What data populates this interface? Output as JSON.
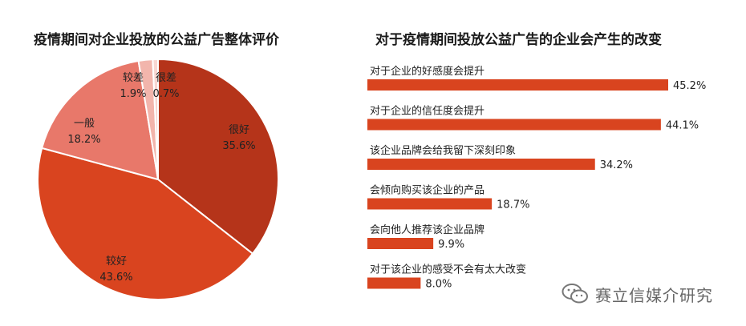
{
  "chart_data": [
    {
      "type": "pie",
      "title": "疫情期间对企业投放的公益广告整体评价",
      "slices": [
        {
          "label": "很好",
          "value": 35.6,
          "value_label": "35.6%",
          "color": "#b5341a"
        },
        {
          "label": "较好",
          "value": 43.6,
          "value_label": "43.6%",
          "color": "#d9441f"
        },
        {
          "label": "一般",
          "value": 18.2,
          "value_label": "18.2%",
          "color": "#e8786a"
        },
        {
          "label": "较差",
          "value": 1.9,
          "value_label": "1.9%",
          "color": "#f2b5ac"
        },
        {
          "label": "很差",
          "value": 0.7,
          "value_label": "0.7%",
          "color": "#f8d6d1"
        }
      ]
    },
    {
      "type": "bar",
      "orientation": "horizontal",
      "title": "对于疫情期间投放公益广告的企业会产生的改变",
      "bar_color": "#d9441f",
      "categories": [
        "对于企业的好感度会提升",
        "对于企业的信任度会提升",
        "该企业品牌会给我留下深刻印象",
        "会倾向购买该企业的产品",
        "会向他人推荐该企业品牌",
        "对于该企业的感受不会有太大改变"
      ],
      "values": [
        45.2,
        44.1,
        34.2,
        18.7,
        9.9,
        8.0
      ],
      "value_labels": [
        "45.2%",
        "44.1%",
        "34.2%",
        "18.7%",
        "9.9%",
        "8.0%"
      ]
    }
  ],
  "watermark": {
    "text": "赛立信媒介研究",
    "icon": "wechat-icon"
  }
}
